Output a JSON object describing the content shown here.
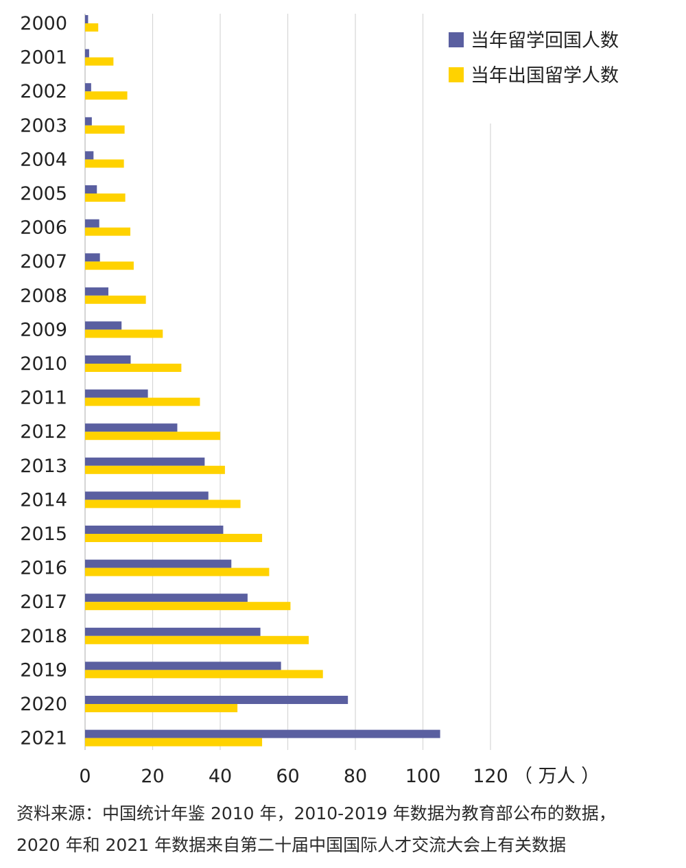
{
  "chart_data": {
    "type": "bar",
    "orientation": "horizontal",
    "categories": [
      "2000",
      "2001",
      "2002",
      "2003",
      "2004",
      "2005",
      "2006",
      "2007",
      "2008",
      "2009",
      "2010",
      "2011",
      "2012",
      "2013",
      "2014",
      "2015",
      "2016",
      "2017",
      "2018",
      "2019",
      "2020",
      "2021"
    ],
    "series": [
      {
        "name": "当年留学回国人数",
        "color": "#5a5fa0",
        "values": [
          0.9,
          1.2,
          1.8,
          2.0,
          2.5,
          3.5,
          4.2,
          4.4,
          6.9,
          10.8,
          13.5,
          18.6,
          27.3,
          35.4,
          36.5,
          40.9,
          43.3,
          48.1,
          51.9,
          58.0,
          77.8,
          105.1
        ]
      },
      {
        "name": "当年出国留学人数",
        "color": "#ffd200",
        "values": [
          3.9,
          8.4,
          12.5,
          11.7,
          11.5,
          11.9,
          13.4,
          14.4,
          18.0,
          23.0,
          28.5,
          34.0,
          40.0,
          41.4,
          46.0,
          52.4,
          54.5,
          60.8,
          66.2,
          70.4,
          45.1,
          52.4
        ]
      }
    ],
    "xlim": [
      0,
      120
    ],
    "xticks": [
      "0",
      "20",
      "40",
      "60",
      "80",
      "100",
      "120"
    ],
    "unit_label": "（ 万人 ）",
    "grid": true,
    "legend_position": "top-right"
  },
  "source_note": {
    "line1": "资料来源：中国统计年鉴 2010 年，2010-2019 年数据为教育部公布的数据，",
    "line2": "2020 年和 2021 年数据来自第二十届中国国际人才交流大会上有关数据"
  }
}
